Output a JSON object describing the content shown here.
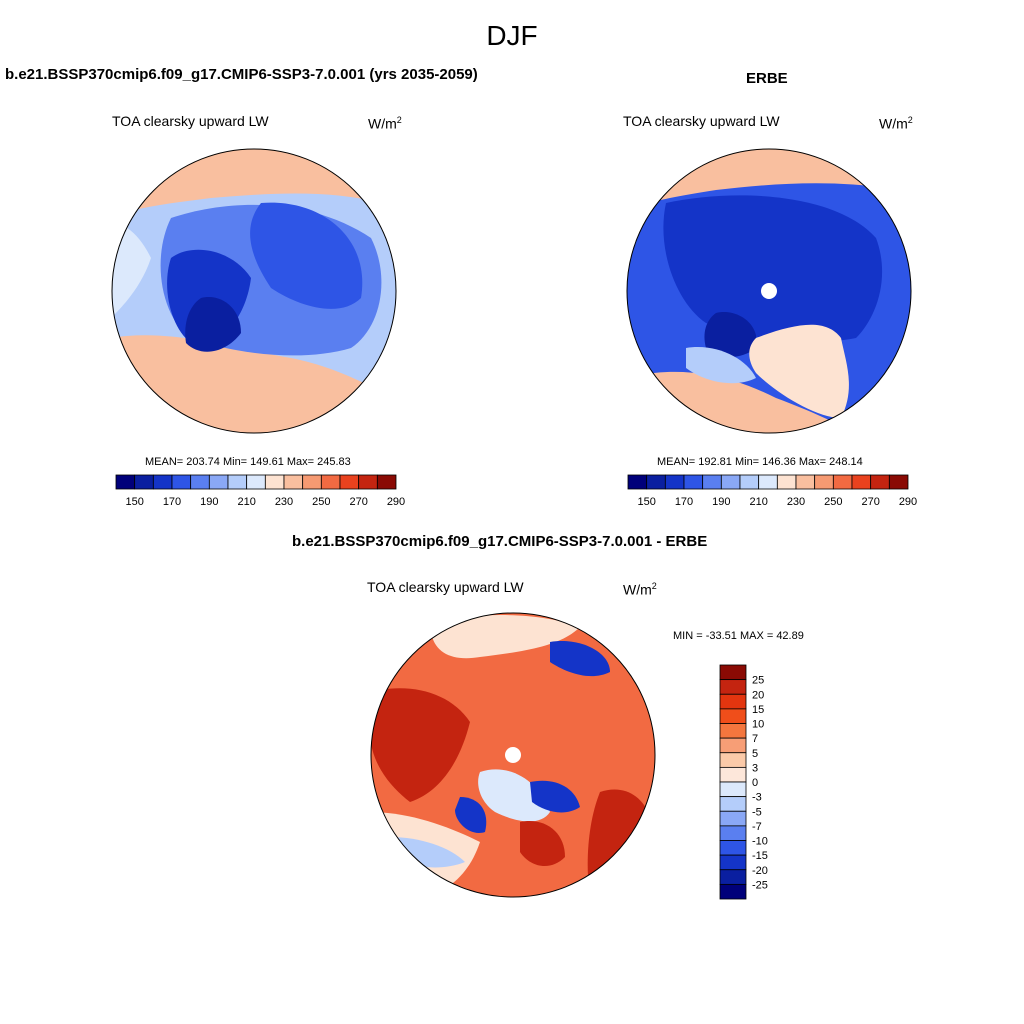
{
  "season_title": "DJF",
  "units_base": "W/m",
  "units_exp": "2",
  "panels": [
    {
      "title": "b.e21.BSSP370cmip6.f09_g17.CMIP6-SSP3-7.0.001 (yrs 2035-2059)",
      "variable": "TOA clearsky upward LW",
      "stats_text": "MEAN= 203.74  Min= 149.61  Max= 245.83",
      "mean": 203.74,
      "min": 149.61,
      "max": 245.83
    },
    {
      "title": "ERBE",
      "variable": "TOA clearsky upward LW",
      "stats_text": "MEAN= 192.81  Min= 146.36  Max= 248.14",
      "mean": 192.81,
      "min": 146.36,
      "max": 248.14
    },
    {
      "title": "b.e21.BSSP370cmip6.f09_g17.CMIP6-SSP3-7.0.001 - ERBE",
      "variable": "TOA clearsky upward LW",
      "stats_text": "MIN = -33.51 MAX =  42.89",
      "min": -33.51,
      "max": 42.89
    }
  ],
  "colorbar_top": {
    "colors": [
      "#00007a",
      "#0a1fa0",
      "#1434c8",
      "#2e55e6",
      "#5a7ff0",
      "#8aa8f6",
      "#b4cdfa",
      "#dce9fc",
      "#fde3d2",
      "#f9bf9f",
      "#f69a72",
      "#f26a42",
      "#e9421e",
      "#c42410",
      "#8a0a04"
    ],
    "tick_labels": [
      "150",
      "170",
      "190",
      "210",
      "230",
      "250",
      "270",
      "290"
    ]
  },
  "colorbar_diff": {
    "colors": [
      "#8a0a04",
      "#c42410",
      "#e3350f",
      "#f04e1a",
      "#f4763e",
      "#f79e76",
      "#fbcaa9",
      "#fde7da",
      "#dce9fc",
      "#b4cdfa",
      "#8aa8f6",
      "#5a7ff0",
      "#2e55e6",
      "#1434c8",
      "#0a1fa0",
      "#00007a"
    ],
    "tick_labels": [
      "25",
      "20",
      "15",
      "10",
      "7",
      "5",
      "3",
      "0",
      "-3",
      "-5",
      "-7",
      "-10",
      "-15",
      "-20",
      "-25"
    ]
  },
  "map_colors": {
    "deep_blue": "#0a1fa0",
    "blue": "#1434c8",
    "mid_blue": "#2e55e6",
    "light_blue": "#8aa8f6",
    "pale_blue": "#dce9fc",
    "pale_red": "#fde3d2",
    "salmon": "#f69a72",
    "red": "#e9421e",
    "dark_red": "#c42410"
  }
}
